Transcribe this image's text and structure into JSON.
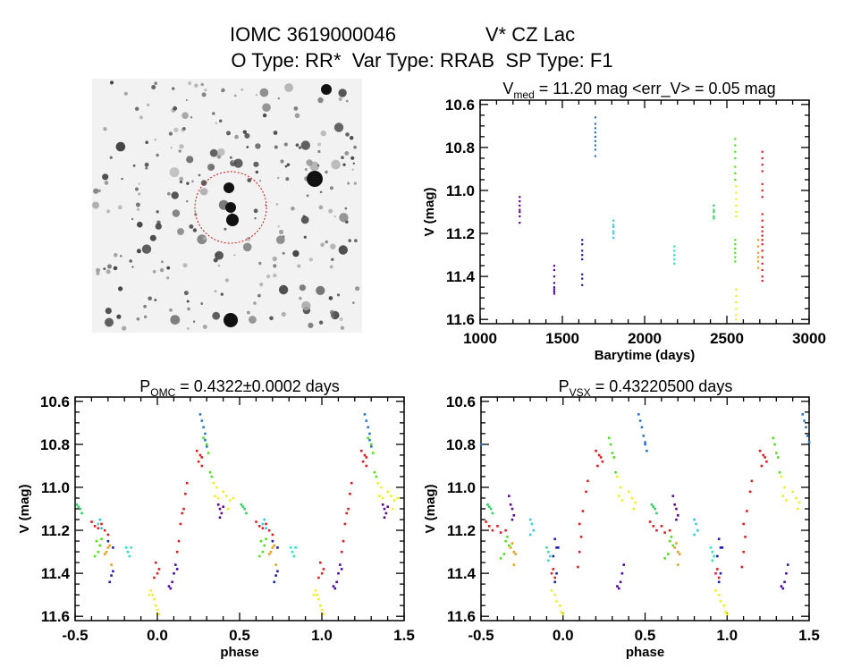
{
  "header": {
    "line1_id": "IOMC 3619000046",
    "line1_name": "V* CZ Lac",
    "line2": "O Type: RR*  Var Type: RRAB  SP Type: F1"
  },
  "colors": {
    "purple1": "#5c0a8a",
    "purple2": "#4a0aa6",
    "blue": "#1c1cb0",
    "steelblue": "#2a76c6",
    "cyan": "#30cce0",
    "turquoise": "#30e0c4",
    "green": "#30d060",
    "lime": "#50e020",
    "yellow": "#f0f020",
    "orange": "#e8a020",
    "red": "#dc1e1e",
    "circle": "#d01010"
  },
  "chart_data": [
    {
      "type": "image",
      "content": "sky field negative image with dashed red circle around target"
    },
    {
      "type": "scatter",
      "title": {
        "main": "V",
        "sub": "med",
        "rest": " = 11.20 mag <err_V> = 0.05 mag"
      },
      "xlabel": "Barytime (days)",
      "ylabel": "V (mag)",
      "xlim": [
        1000,
        3000
      ],
      "ylim": [
        10.58,
        11.62
      ],
      "y_inverted": true,
      "xticks": [
        1000,
        1500,
        2000,
        2500,
        3000
      ],
      "yticks": [
        "10.6",
        "10.8",
        "11.0",
        "11.2",
        "11.4",
        "11.6"
      ],
      "groups": [
        {
          "color": "purple1",
          "t": 1240,
          "V": [
            11.03,
            11.05,
            11.07,
            11.09,
            11.1,
            11.12,
            11.15
          ]
        },
        {
          "color": "purple2",
          "t": 1450,
          "V": [
            11.35,
            11.37,
            11.4,
            11.43,
            11.45,
            11.46,
            11.47,
            11.48
          ]
        },
        {
          "color": "blue",
          "t": 1620,
          "V": [
            11.23,
            11.25,
            11.28,
            11.3,
            11.32,
            11.39,
            11.41,
            11.44
          ]
        },
        {
          "color": "steelblue",
          "t": 1700,
          "V": [
            10.66,
            10.69,
            10.71,
            10.73,
            10.75,
            10.77,
            10.79,
            10.81,
            10.84
          ]
        },
        {
          "color": "cyan",
          "t": 1810,
          "V": [
            11.14,
            11.16,
            11.17,
            11.19,
            11.2,
            11.22
          ]
        },
        {
          "color": "turquoise",
          "t": 2180,
          "V": [
            11.26,
            11.28,
            11.3,
            11.32,
            11.34
          ]
        },
        {
          "color": "green",
          "t": 2420,
          "V": [
            11.07,
            11.09,
            11.1,
            11.12,
            11.13
          ]
        },
        {
          "color": "lime",
          "t": 2550,
          "V": [
            10.76,
            10.79,
            10.82,
            10.85,
            10.89,
            10.92,
            10.95,
            11.23,
            11.25,
            11.27,
            11.29,
            11.31,
            11.33
          ]
        },
        {
          "color": "yellow",
          "t": 2555,
          "V": [
            10.98,
            11.01,
            11.04,
            11.07,
            11.1,
            11.12,
            11.46,
            11.49,
            11.52,
            11.55,
            11.58,
            11.6
          ]
        },
        {
          "color": "orange",
          "t": 2690,
          "V": [
            11.23,
            11.26,
            11.29,
            11.31,
            11.33,
            11.36
          ]
        },
        {
          "color": "red",
          "t": 2715,
          "V": [
            10.82,
            10.85,
            10.88,
            10.91,
            10.97,
            11.0,
            11.03,
            11.11,
            11.14,
            11.17,
            11.19,
            11.21,
            11.23,
            11.25,
            11.28,
            11.31,
            11.34,
            11.37,
            11.4,
            11.42
          ]
        }
      ]
    },
    {
      "type": "scatter",
      "title": {
        "main": "P",
        "sub": "OMC",
        "rest": " = 0.4322±0.0002 days"
      },
      "xlabel": "phase",
      "ylabel": "V (mag)",
      "xlim": [
        -0.5,
        1.5
      ],
      "ylim": [
        10.58,
        11.62
      ],
      "y_inverted": true,
      "xticks": [
        "-0.5",
        "0.0",
        "0.5",
        "1.0",
        "1.5"
      ],
      "yticks": [
        "10.6",
        "10.8",
        "11.0",
        "11.2",
        "11.4",
        "11.6"
      ],
      "repeat_period": 1,
      "series": [
        {
          "color": "steelblue",
          "points": [
            [
              0.26,
              10.66
            ],
            [
              0.27,
              10.69
            ],
            [
              0.28,
              10.72
            ],
            [
              0.29,
              10.75
            ],
            [
              0.29,
              10.78
            ],
            [
              0.3,
              10.81
            ]
          ]
        },
        {
          "color": "lime",
          "points": [
            [
              0.28,
              10.77
            ],
            [
              0.3,
              10.8
            ],
            [
              0.31,
              10.84
            ],
            [
              0.32,
              10.93
            ],
            [
              0.33,
              10.95
            ],
            [
              -0.37,
              11.25
            ],
            [
              -0.35,
              11.27
            ],
            [
              -0.34,
              11.24
            ],
            [
              -0.36,
              11.3
            ],
            [
              -0.38,
              11.32
            ]
          ]
        },
        {
          "color": "green",
          "points": [
            [
              -0.49,
              11.08
            ],
            [
              -0.47,
              11.1
            ],
            [
              -0.46,
              11.12
            ],
            [
              -0.48,
              11.09
            ]
          ]
        },
        {
          "color": "red",
          "points": [
            [
              0.24,
              10.83
            ],
            [
              0.26,
              10.85
            ],
            [
              0.27,
              10.86
            ],
            [
              0.25,
              10.88
            ],
            [
              0.27,
              10.9
            ],
            [
              0.12,
              11.3
            ],
            [
              0.13,
              11.25
            ],
            [
              0.14,
              11.17
            ],
            [
              0.15,
              11.12
            ],
            [
              0.16,
              11.1
            ],
            [
              0.17,
              11.03
            ],
            [
              0.18,
              10.98
            ],
            [
              -0.4,
              11.16
            ],
            [
              -0.38,
              11.18
            ],
            [
              -0.36,
              11.19
            ],
            [
              -0.34,
              11.17
            ],
            [
              -0.32,
              11.2
            ],
            [
              -0.3,
              11.22
            ],
            [
              -0.01,
              11.35
            ],
            [
              0.0,
              11.4
            ],
            [
              0.01,
              11.38
            ],
            [
              -0.02,
              11.42
            ]
          ]
        },
        {
          "color": "yellow",
          "points": [
            [
              0.34,
              10.98
            ],
            [
              0.36,
              11.0
            ],
            [
              0.35,
              11.04
            ],
            [
              0.37,
              11.05
            ],
            [
              0.4,
              11.02
            ],
            [
              0.42,
              11.04
            ],
            [
              0.44,
              11.06
            ],
            [
              0.46,
              11.05
            ],
            [
              0.43,
              11.1
            ],
            [
              -0.04,
              11.48
            ],
            [
              -0.03,
              11.5
            ],
            [
              -0.02,
              11.52
            ],
            [
              -0.01,
              11.55
            ],
            [
              0.0,
              11.57
            ],
            [
              0.01,
              11.59
            ],
            [
              -0.05,
              11.5
            ]
          ]
        },
        {
          "color": "orange",
          "points": [
            [
              -0.3,
              11.28
            ],
            [
              -0.31,
              11.3
            ],
            [
              -0.29,
              11.27
            ],
            [
              -0.32,
              11.31
            ],
            [
              -0.28,
              11.36
            ]
          ]
        },
        {
          "color": "cyan",
          "points": [
            [
              -0.35,
              11.15
            ],
            [
              -0.36,
              11.17
            ],
            [
              -0.34,
              11.19
            ]
          ]
        },
        {
          "color": "turquoise",
          "points": [
            [
              -0.19,
              11.28
            ],
            [
              -0.18,
              11.3
            ],
            [
              -0.17,
              11.32
            ],
            [
              -0.16,
              11.28
            ]
          ]
        },
        {
          "color": "blue",
          "points": [
            [
              -0.27,
              11.28
            ],
            [
              -0.28,
              11.41
            ],
            [
              -0.27,
              11.39
            ],
            [
              -0.29,
              11.44
            ],
            [
              -0.3,
              11.25
            ]
          ]
        },
        {
          "color": "purple1",
          "points": [
            [
              0.37,
              11.08
            ],
            [
              0.38,
              11.1
            ],
            [
              0.39,
              11.12
            ],
            [
              0.38,
              11.14
            ],
            [
              0.4,
              11.09
            ]
          ]
        },
        {
          "color": "purple2",
          "points": [
            [
              0.07,
              11.46
            ],
            [
              0.08,
              11.47
            ],
            [
              0.09,
              11.44
            ],
            [
              0.1,
              11.4
            ],
            [
              0.11,
              11.36
            ],
            [
              0.12,
              11.38
            ]
          ]
        }
      ]
    },
    {
      "type": "scatter",
      "title": {
        "main": "P",
        "sub": "VSX",
        "rest": " = 0.43220500 days"
      },
      "xlabel": "phase",
      "ylabel": "V (mag)",
      "xlim": [
        -0.5,
        1.5
      ],
      "ylim": [
        10.58,
        11.62
      ],
      "y_inverted": true,
      "xticks": [
        "-0.5",
        "0.0",
        "0.5",
        "1.0",
        "1.5"
      ],
      "yticks": [
        "10.6",
        "10.8",
        "11.0",
        "11.2",
        "11.4",
        "11.6"
      ],
      "repeat_period": 1,
      "series": [
        {
          "color": "steelblue",
          "points": [
            [
              0.46,
              10.66
            ],
            [
              0.47,
              10.69
            ],
            [
              0.48,
              10.72
            ],
            [
              0.49,
              10.76
            ],
            [
              0.5,
              10.79
            ],
            [
              0.51,
              10.83
            ],
            [
              -0.5,
              10.8
            ]
          ]
        },
        {
          "color": "lime",
          "points": [
            [
              0.28,
              10.77
            ],
            [
              0.29,
              10.8
            ],
            [
              0.3,
              10.84
            ],
            [
              0.31,
              10.86
            ],
            [
              0.32,
              10.93
            ],
            [
              -0.35,
              11.25
            ],
            [
              -0.33,
              11.27
            ],
            [
              -0.36,
              11.31
            ],
            [
              -0.38,
              11.33
            ],
            [
              -0.34,
              11.23
            ]
          ]
        },
        {
          "color": "green",
          "points": [
            [
              -0.46,
              11.08
            ],
            [
              -0.44,
              11.1
            ],
            [
              -0.43,
              11.12
            ],
            [
              -0.45,
              11.09
            ]
          ]
        },
        {
          "color": "red",
          "points": [
            [
              0.2,
              10.83
            ],
            [
              0.22,
              10.85
            ],
            [
              0.23,
              10.86
            ],
            [
              0.24,
              10.88
            ],
            [
              0.21,
              10.9
            ],
            [
              0.09,
              11.37
            ],
            [
              0.1,
              11.3
            ],
            [
              0.11,
              11.23
            ],
            [
              0.1,
              11.17
            ],
            [
              0.12,
              11.11
            ],
            [
              0.14,
              11.02
            ],
            [
              0.15,
              10.97
            ],
            [
              -0.47,
              11.16
            ],
            [
              -0.45,
              11.18
            ],
            [
              -0.43,
              11.2
            ],
            [
              -0.4,
              11.18
            ],
            [
              -0.38,
              11.21
            ],
            [
              -0.35,
              11.2
            ],
            [
              -0.07,
              11.4
            ],
            [
              -0.05,
              11.42
            ],
            [
              -0.06,
              11.38
            ]
          ]
        },
        {
          "color": "yellow",
          "points": [
            [
              0.33,
              10.95
            ],
            [
              0.35,
              11.0
            ],
            [
              0.34,
              11.04
            ],
            [
              0.36,
              11.06
            ],
            [
              0.4,
              11.02
            ],
            [
              0.42,
              11.05
            ],
            [
              0.44,
              11.07
            ],
            [
              0.43,
              11.1
            ],
            [
              -0.07,
              11.48
            ],
            [
              -0.05,
              11.5
            ],
            [
              -0.04,
              11.53
            ],
            [
              -0.02,
              11.55
            ],
            [
              -0.01,
              11.58
            ],
            [
              0.0,
              11.59
            ]
          ]
        },
        {
          "color": "orange",
          "points": [
            [
              -0.32,
              11.28
            ],
            [
              -0.3,
              11.3
            ],
            [
              -0.31,
              11.26
            ],
            [
              -0.29,
              11.31
            ],
            [
              -0.3,
              11.36
            ]
          ]
        },
        {
          "color": "cyan",
          "points": [
            [
              -0.2,
              11.15
            ],
            [
              -0.19,
              11.17
            ],
            [
              -0.18,
              11.2
            ],
            [
              -0.2,
              11.22
            ]
          ]
        },
        {
          "color": "turquoise",
          "points": [
            [
              -0.1,
              11.28
            ],
            [
              -0.09,
              11.3
            ],
            [
              -0.08,
              11.32
            ],
            [
              -0.09,
              11.34
            ]
          ]
        },
        {
          "color": "blue",
          "points": [
            [
              -0.05,
              11.24
            ],
            [
              -0.04,
              11.28
            ],
            [
              -0.03,
              11.28
            ],
            [
              -0.06,
              11.32
            ],
            [
              -0.04,
              11.4
            ],
            [
              -0.05,
              11.44
            ]
          ]
        },
        {
          "color": "purple1",
          "points": [
            [
              -0.33,
              11.04
            ],
            [
              -0.32,
              11.08
            ],
            [
              -0.31,
              11.1
            ],
            [
              -0.3,
              11.13
            ],
            [
              -0.31,
              11.15
            ]
          ]
        },
        {
          "color": "purple2",
          "points": [
            [
              0.33,
              11.46
            ],
            [
              0.34,
              11.47
            ],
            [
              0.35,
              11.44
            ],
            [
              0.36,
              11.4
            ],
            [
              0.37,
              11.36
            ]
          ]
        }
      ]
    }
  ]
}
